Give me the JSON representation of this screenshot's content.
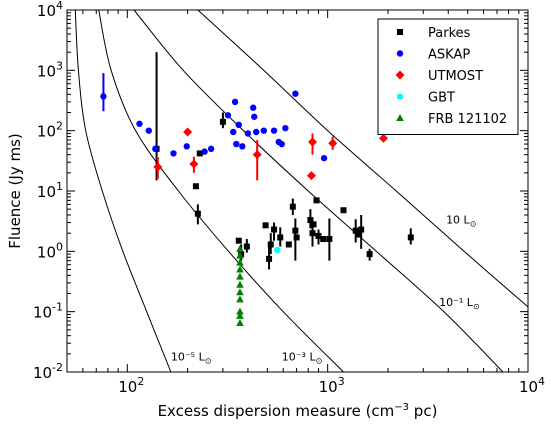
{
  "chart_data": {
    "type": "scatter",
    "xscale": "log",
    "yscale": "log",
    "xlim": [
      50,
      10000
    ],
    "ylim": [
      0.01,
      10000
    ],
    "xlabel": "Excess dispersion measure (cm",
    "xlabel_sup": "−3",
    "xlabel_tail": " pc)",
    "ylabel": "Fluence (Jy ms)",
    "x_ticks": [
      {
        "value": 100,
        "base": "10",
        "exp": "2"
      },
      {
        "value": 1000,
        "base": "10",
        "exp": "3"
      },
      {
        "value": 10000,
        "base": "10",
        "exp": "4"
      }
    ],
    "y_ticks": [
      {
        "value": 0.01,
        "base": "10",
        "exp": "-2"
      },
      {
        "value": 0.1,
        "base": "10",
        "exp": "-1"
      },
      {
        "value": 1,
        "base": "10",
        "exp": "0"
      },
      {
        "value": 10,
        "base": "10",
        "exp": "1"
      },
      {
        "value": 100,
        "base": "10",
        "exp": "2"
      },
      {
        "value": 1000,
        "base": "10",
        "exp": "3"
      },
      {
        "value": 10000,
        "base": "10",
        "exp": "4"
      }
    ],
    "curves": [
      {
        "label": "10⁻⁵ L",
        "points": [
          [
            55,
            10000
          ],
          [
            57,
            1000
          ],
          [
            62,
            100
          ],
          [
            75,
            10
          ],
          [
            95,
            1
          ],
          [
            125,
            0.1
          ],
          [
            165,
            0.01
          ]
        ],
        "label_at": [
          165,
          0.0155
        ]
      },
      {
        "label": "10⁻³ L",
        "points": [
          [
            72,
            10000
          ],
          [
            83,
            1000
          ],
          [
            110,
            100
          ],
          [
            180,
            10
          ],
          [
            320,
            1
          ],
          [
            600,
            0.1
          ],
          [
            1200,
            0.01
          ]
        ],
        "label_at": [
          590,
          0.0155
        ]
      },
      {
        "label": "10⁻¹ L",
        "points": [
          [
            108,
            10000
          ],
          [
            190,
            1000
          ],
          [
            380,
            100
          ],
          [
            800,
            10
          ],
          [
            1750,
            1
          ],
          [
            3800,
            0.1
          ],
          [
            7500,
            0.01
          ]
        ],
        "label_at": [
          3600,
          0.125
        ]
      },
      {
        "label": "10 L",
        "points": [
          [
            225,
            10000
          ],
          [
            480,
            1000
          ],
          [
            1000,
            100
          ],
          [
            2200,
            10
          ],
          [
            4800,
            1
          ],
          [
            10000,
            0.12
          ]
        ],
        "label_at": [
          3900,
          2.9
        ]
      }
    ],
    "series": [
      {
        "name": "Parkes",
        "marker": "square",
        "color": "#000000",
        "points": [
          {
            "x": 140,
            "y": 50,
            "lo": 15,
            "hi": 2000
          },
          {
            "x": 220,
            "y": 12
          },
          {
            "x": 225,
            "y": 4.2,
            "lo": 2.8,
            "hi": 6
          },
          {
            "x": 230,
            "y": 42
          },
          {
            "x": 300,
            "y": 140,
            "lo": 110,
            "hi": 200
          },
          {
            "x": 360,
            "y": 1.5
          },
          {
            "x": 370,
            "y": 0.9,
            "lo": 0.7,
            "hi": 1.3
          },
          {
            "x": 395,
            "y": 1.2,
            "lo": 0.95,
            "hi": 1.6
          },
          {
            "x": 490,
            "y": 2.7
          },
          {
            "x": 510,
            "y": 0.75,
            "lo": 0.5,
            "hi": 1.2
          },
          {
            "x": 520,
            "y": 1.3,
            "lo": 0.9,
            "hi": 2.0
          },
          {
            "x": 540,
            "y": 2.3,
            "lo": 1.5,
            "hi": 3.0
          },
          {
            "x": 580,
            "y": 1.7,
            "lo": 1.2,
            "hi": 2.5
          },
          {
            "x": 640,
            "y": 1.3
          },
          {
            "x": 670,
            "y": 5.5,
            "lo": 4,
            "hi": 7.5
          },
          {
            "x": 690,
            "y": 2.2,
            "lo": 0.7,
            "hi": 3.5
          },
          {
            "x": 700,
            "y": 1.7
          },
          {
            "x": 820,
            "y": 3.3,
            "lo": 2.4,
            "hi": 5
          },
          {
            "x": 840,
            "y": 2.0,
            "lo": 1.2,
            "hi": 3.5
          },
          {
            "x": 850,
            "y": 2.8
          },
          {
            "x": 880,
            "y": 7
          },
          {
            "x": 900,
            "y": 1.8,
            "lo": 1.3,
            "hi": 2.3
          },
          {
            "x": 950,
            "y": 1.6
          },
          {
            "x": 1020,
            "y": 1.6,
            "lo": 0.7,
            "hi": 3.5
          },
          {
            "x": 1200,
            "y": 4.8
          },
          {
            "x": 1380,
            "y": 2.2,
            "lo": 1.4,
            "hi": 3.4
          },
          {
            "x": 1420,
            "y": 1.9
          },
          {
            "x": 1470,
            "y": 2.3,
            "lo": 1.1,
            "hi": 4.0
          },
          {
            "x": 1620,
            "y": 0.9,
            "lo": 0.7,
            "hi": 1.1
          },
          {
            "x": 2600,
            "y": 1.7,
            "lo": 1.3,
            "hi": 2.4
          }
        ]
      },
      {
        "name": "ASKAP",
        "marker": "circle",
        "color": "#0000ff",
        "points": [
          {
            "x": 76,
            "y": 370,
            "lo": 210,
            "hi": 900
          },
          {
            "x": 115,
            "y": 130
          },
          {
            "x": 128,
            "y": 100
          },
          {
            "x": 138,
            "y": 50
          },
          {
            "x": 170,
            "y": 42
          },
          {
            "x": 198,
            "y": 55
          },
          {
            "x": 243,
            "y": 45
          },
          {
            "x": 262,
            "y": 50
          },
          {
            "x": 318,
            "y": 180
          },
          {
            "x": 338,
            "y": 95
          },
          {
            "x": 345,
            "y": 300
          },
          {
            "x": 350,
            "y": 60
          },
          {
            "x": 360,
            "y": 125
          },
          {
            "x": 375,
            "y": 55
          },
          {
            "x": 400,
            "y": 90
          },
          {
            "x": 425,
            "y": 240
          },
          {
            "x": 430,
            "y": 170
          },
          {
            "x": 440,
            "y": 95
          },
          {
            "x": 480,
            "y": 100
          },
          {
            "x": 540,
            "y": 100
          },
          {
            "x": 570,
            "y": 65
          },
          {
            "x": 590,
            "y": 60
          },
          {
            "x": 615,
            "y": 110
          },
          {
            "x": 690,
            "y": 410
          },
          {
            "x": 960,
            "y": 35
          }
        ]
      },
      {
        "name": "UTMOST",
        "marker": "diamond",
        "color": "#ff0000",
        "points": [
          {
            "x": 142,
            "y": 25,
            "lo": 16,
            "hi": 36
          },
          {
            "x": 200,
            "y": 95
          },
          {
            "x": 215,
            "y": 28,
            "lo": 20,
            "hi": 37
          },
          {
            "x": 445,
            "y": 40,
            "lo": 15,
            "hi": 70
          },
          {
            "x": 830,
            "y": 18
          },
          {
            "x": 840,
            "y": 65,
            "lo": 40,
            "hi": 90
          },
          {
            "x": 1060,
            "y": 62,
            "lo": 48,
            "hi": 80
          },
          {
            "x": 1900,
            "y": 75
          }
        ]
      },
      {
        "name": "GBT",
        "marker": "circle",
        "color": "#00ffff",
        "points": [
          {
            "x": 560,
            "y": 1.05
          }
        ]
      },
      {
        "name": "FRB 121102",
        "marker": "triangle",
        "color": "#008000",
        "points": [
          {
            "x": 365,
            "y": 1.1
          },
          {
            "x": 365,
            "y": 0.85
          },
          {
            "x": 365,
            "y": 0.65
          },
          {
            "x": 365,
            "y": 0.5
          },
          {
            "x": 365,
            "y": 0.38
          },
          {
            "x": 365,
            "y": 0.28
          },
          {
            "x": 365,
            "y": 0.21
          },
          {
            "x": 365,
            "y": 0.16
          },
          {
            "x": 365,
            "y": 0.1
          },
          {
            "x": 365,
            "y": 0.085
          },
          {
            "x": 365,
            "y": 0.065
          }
        ]
      }
    ],
    "legend": {
      "placement": "top-right",
      "entries": [
        "Parkes",
        "ASKAP",
        "UTMOST",
        "GBT",
        "FRB 121102"
      ]
    },
    "grid": false
  }
}
